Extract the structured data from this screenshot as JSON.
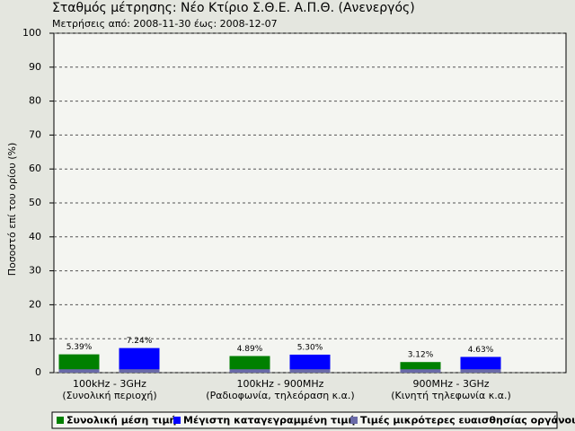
{
  "chart_data": {
    "type": "bar",
    "title": "Σταθμός μέτρησης: Νέο Κτίριο Σ.Θ.Ε. Α.Π.Θ. (Ανενεργός)",
    "subtitle": "Μετρήσεις από: 2008-11-30 έως: 2008-12-07",
    "y_label": "Ποσοστό επί του ορίου (%)",
    "categories": [
      [
        "100kHz - 3GHz",
        "(Συνολική περιοχή)"
      ],
      [
        "100kHz - 900MHz",
        "(Ραδιοφωνία, τηλεόραση κ.α.)"
      ],
      [
        "900MHz - 3GHz",
        "(Κινητή τηλεφωνία κ.α.)"
      ]
    ],
    "series": [
      {
        "name": "Συνολική μέση τιμή",
        "color": "#008000",
        "values": [
          5.39,
          4.89,
          3.12
        ],
        "value_labels": [
          "5.39%",
          "4.89%",
          "3.12%"
        ]
      },
      {
        "name": "Μέγιστη καταγεγραμμένη τιμή",
        "color": "#0000ff",
        "values": [
          7.24,
          5.3,
          4.63
        ],
        "value_labels": [
          "7.24%",
          "5.30%",
          "4.63%"
        ]
      },
      {
        "name": "Τιμές μικρότερες ευαισθησίας οργάνου",
        "color": "#6a6aa8",
        "values": [
          1,
          1,
          1
        ]
      }
    ],
    "ylim": [
      0,
      100
    ],
    "yticks": [
      0,
      10,
      20,
      30,
      40,
      50,
      60,
      70,
      80,
      90,
      100
    ],
    "grid": true
  }
}
